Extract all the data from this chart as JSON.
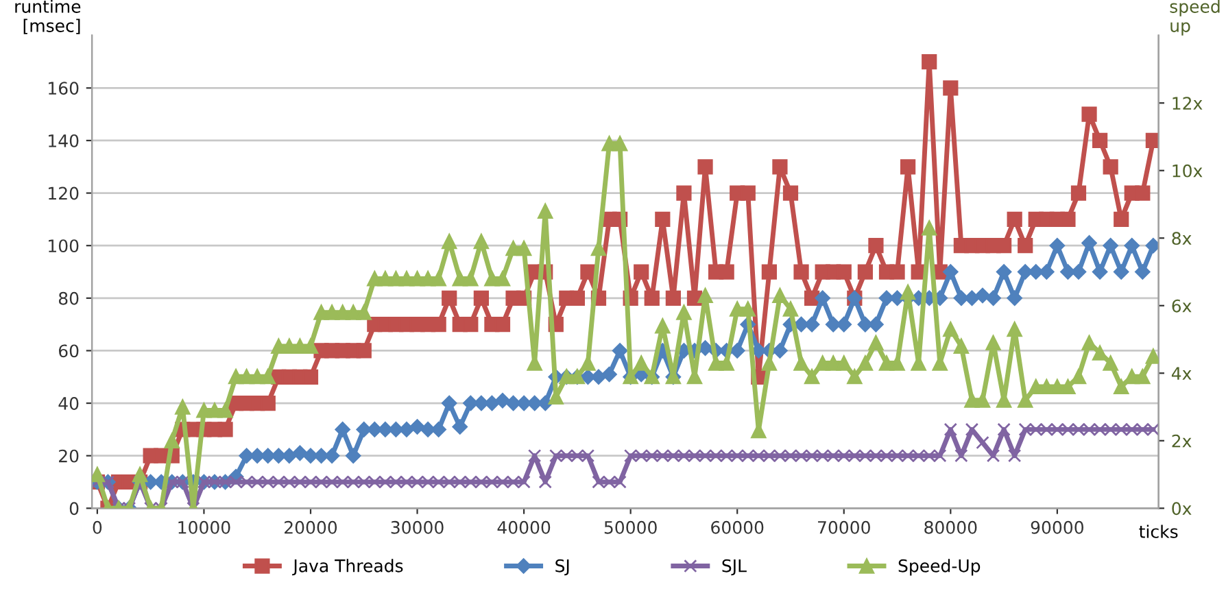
{
  "chart_data": {
    "type": "line",
    "xlabel": "ticks",
    "ylabel": "runtime\n[msec]",
    "y2label": "speed\nup",
    "x": [
      0,
      1000,
      2000,
      3000,
      4000,
      5000,
      6000,
      7000,
      8000,
      9000,
      10000,
      11000,
      12000,
      13000,
      14000,
      15000,
      16000,
      17000,
      18000,
      19000,
      20000,
      21000,
      22000,
      23000,
      24000,
      25000,
      26000,
      27000,
      28000,
      29000,
      30000,
      31000,
      32000,
      33000,
      34000,
      35000,
      36000,
      37000,
      38000,
      39000,
      40000,
      41000,
      42000,
      43000,
      44000,
      45000,
      46000,
      47000,
      48000,
      49000,
      50000,
      51000,
      52000,
      53000,
      54000,
      55000,
      56000,
      57000,
      58000,
      59000,
      60000,
      61000,
      62000,
      63000,
      64000,
      65000,
      66000,
      67000,
      68000,
      69000,
      70000,
      71000,
      72000,
      73000,
      74000,
      75000,
      76000,
      77000,
      78000,
      79000,
      80000,
      81000,
      82000,
      83000,
      84000,
      85000,
      86000,
      87000,
      88000,
      89000,
      90000,
      91000,
      92000,
      93000,
      94000,
      95000,
      96000,
      97000,
      98000,
      99000
    ],
    "series": [
      {
        "name": "Java Threads",
        "color": "#c0504d",
        "marker": "square",
        "values": [
          10,
          0,
          10,
          10,
          10,
          20,
          20,
          20,
          30,
          30,
          30,
          30,
          30,
          40,
          40,
          40,
          40,
          50,
          50,
          50,
          50,
          60,
          60,
          60,
          60,
          60,
          70,
          70,
          70,
          70,
          70,
          70,
          70,
          80,
          70,
          70,
          80,
          70,
          70,
          80,
          80,
          90,
          90,
          70,
          80,
          80,
          90,
          80,
          110,
          110,
          80,
          90,
          80,
          110,
          80,
          120,
          80,
          130,
          90,
          90,
          120,
          120,
          50,
          90,
          130,
          120,
          90,
          80,
          90,
          90,
          90,
          80,
          90,
          100,
          90,
          90,
          130,
          90,
          170,
          90,
          160,
          100,
          100,
          100,
          100,
          100,
          110,
          100,
          110,
          110,
          110,
          110,
          120,
          150,
          140,
          130,
          110,
          120,
          120,
          140
        ]
      },
      {
        "name": "SJ",
        "color": "#4f81bd",
        "marker": "diamond",
        "values": [
          10,
          10,
          0,
          0,
          10,
          10,
          10,
          10,
          10,
          10,
          10,
          10,
          10,
          12,
          20,
          20,
          20,
          20,
          20,
          21,
          20,
          20,
          20,
          30,
          20,
          30,
          30,
          30,
          30,
          30,
          31,
          30,
          30,
          40,
          31,
          40,
          40,
          40,
          41,
          40,
          40,
          40,
          40,
          50,
          50,
          50,
          50,
          50,
          51,
          60,
          50,
          51,
          50,
          60,
          50,
          60,
          60,
          61,
          60,
          60,
          60,
          70,
          60,
          60,
          60,
          70,
          70,
          70,
          80,
          70,
          70,
          80,
          70,
          70,
          80,
          80,
          80,
          80,
          80,
          80,
          90,
          80,
          80,
          81,
          80,
          90,
          80,
          90,
          90,
          90,
          100,
          90,
          90,
          101,
          90,
          100,
          90,
          100,
          90,
          100
        ]
      },
      {
        "name": "SJL",
        "color": "#8064a2",
        "marker": "cross",
        "values": [
          10,
          10,
          0,
          0,
          10,
          0,
          0,
          10,
          10,
          0,
          10,
          10,
          10,
          10,
          10,
          10,
          10,
          10,
          10,
          10,
          10,
          10,
          10,
          10,
          10,
          10,
          10,
          10,
          10,
          10,
          10,
          10,
          10,
          10,
          10,
          10,
          10,
          10,
          10,
          10,
          10,
          20,
          10,
          20,
          20,
          20,
          20,
          10,
          10,
          10,
          20,
          20,
          20,
          20,
          20,
          20,
          20,
          20,
          20,
          20,
          20,
          20,
          20,
          20,
          20,
          20,
          20,
          20,
          20,
          20,
          20,
          20,
          20,
          20,
          20,
          20,
          20,
          20,
          20,
          20,
          30,
          20,
          30,
          25,
          20,
          30,
          20,
          30,
          30,
          30,
          30,
          30,
          30,
          30,
          30,
          30,
          30,
          30,
          30,
          30
        ]
      },
      {
        "name": "Speed-Up",
        "color": "#9bbb59",
        "marker": "triangle",
        "axis": "y2",
        "values": [
          1,
          0,
          0,
          0,
          1,
          0,
          0,
          2,
          3,
          0,
          2.9,
          2.9,
          2.9,
          3.9,
          3.9,
          3.9,
          3.9,
          4.8,
          4.8,
          4.8,
          4.8,
          5.8,
          5.8,
          5.8,
          5.8,
          5.8,
          6.8,
          6.8,
          6.8,
          6.8,
          6.8,
          6.8,
          6.8,
          7.9,
          6.8,
          6.8,
          7.9,
          6.8,
          6.8,
          7.7,
          7.7,
          4.3,
          8.8,
          3.3,
          3.9,
          3.9,
          4.3,
          7.7,
          10.8,
          10.8,
          3.9,
          4.3,
          3.9,
          5.4,
          3.9,
          5.8,
          3.9,
          6.3,
          4.3,
          4.3,
          5.9,
          5.9,
          2.3,
          4.3,
          6.3,
          5.9,
          4.3,
          3.9,
          4.3,
          4.3,
          4.3,
          3.9,
          4.3,
          4.9,
          4.3,
          4.3,
          6.4,
          4.3,
          8.3,
          4.3,
          5.3,
          4.8,
          3.2,
          3.2,
          4.9,
          3.2,
          5.3,
          3.2,
          3.6,
          3.6,
          3.6,
          3.6,
          3.9,
          4.9,
          4.6,
          4.3,
          3.6,
          3.9,
          3.9,
          4.5
        ]
      }
    ],
    "xlim": [
      -500,
      99500
    ],
    "xticks": [
      0,
      10000,
      20000,
      30000,
      40000,
      50000,
      60000,
      70000,
      80000,
      90000
    ],
    "ylim": [
      0,
      180
    ],
    "yticks": [
      0,
      20,
      40,
      60,
      80,
      100,
      120,
      140,
      160
    ],
    "y2lim": [
      0,
      14
    ],
    "y2ticks": [
      {
        "value": 0,
        "label": "0x"
      },
      {
        "value": 2,
        "label": "2x"
      },
      {
        "value": 4,
        "label": "4x"
      },
      {
        "value": 6,
        "label": "6x"
      },
      {
        "value": 8,
        "label": "8x"
      },
      {
        "value": 10,
        "label": "10x"
      },
      {
        "value": 12,
        "label": "12x"
      }
    ],
    "grid": "y",
    "legend": "bottom",
    "line_style": "solid"
  }
}
